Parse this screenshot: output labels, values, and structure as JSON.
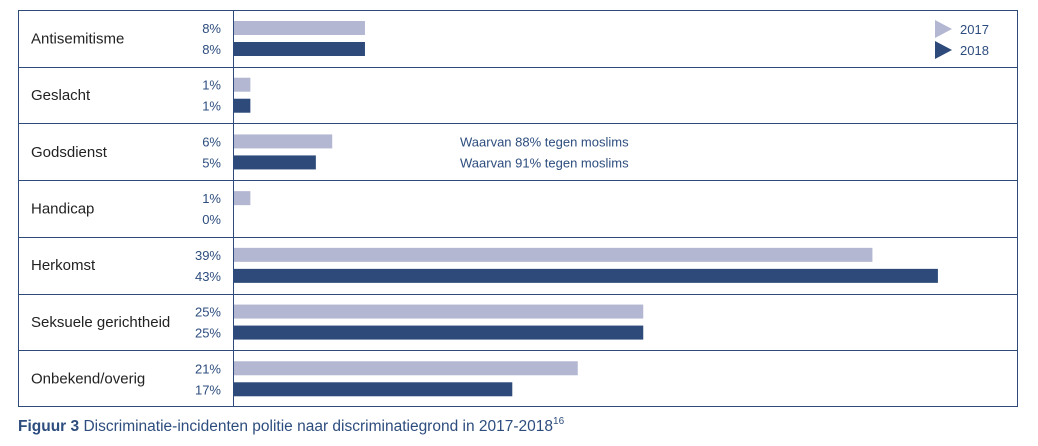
{
  "chart_data": {
    "type": "bar",
    "orientation": "horizontal",
    "unit": "%",
    "categories": [
      "Antisemitisme",
      "Geslacht",
      "Godsdienst",
      "Handicap",
      "Herkomst",
      "Seksuele gerichtheid",
      "Onbekend/overig"
    ],
    "series": [
      {
        "name": "2017",
        "values": [
          8,
          1,
          6,
          1,
          39,
          25,
          21
        ],
        "color": "#b3b7d2"
      },
      {
        "name": "2018",
        "values": [
          8,
          1,
          5,
          0,
          43,
          25,
          17
        ],
        "color": "#2d4a7a"
      }
    ],
    "annotations": [
      {
        "category": "Godsdienst",
        "series": "2017",
        "text": "Waarvan 88% tegen moslims"
      },
      {
        "category": "Godsdienst",
        "series": "2018",
        "text": "Waarvan 91% tegen moslims"
      }
    ],
    "legend_position": "top-right",
    "xlim": [
      0,
      43
    ],
    "grid": false
  },
  "caption": {
    "label": "Figuur 3",
    "text": "Discriminatie-incidenten politie naar discriminatiegrond in 2017-2018",
    "footnote": "16"
  },
  "colors": {
    "light": "#b3b7d2",
    "dark": "#2d4a7a",
    "text": "#2d4d7e",
    "border": "#2d4a7a"
  }
}
